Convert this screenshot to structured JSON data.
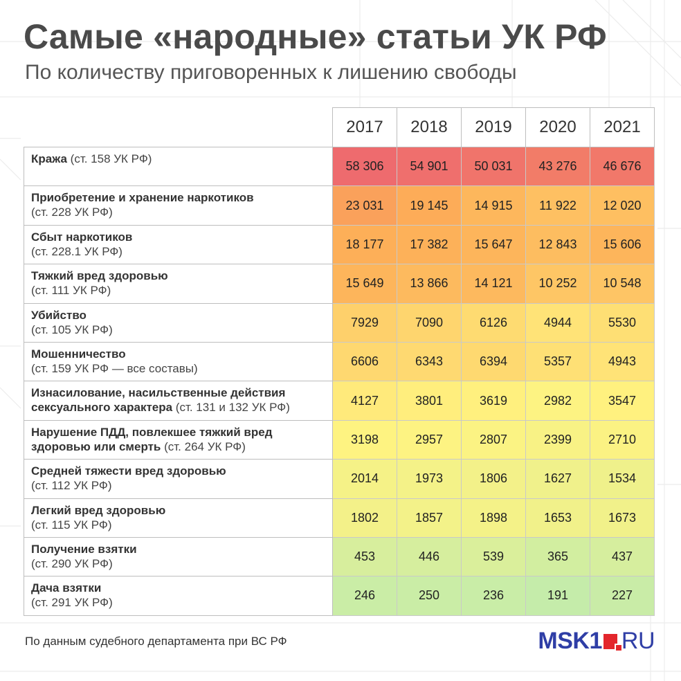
{
  "title": "Самые «народные» статьи УК РФ",
  "subtitle": "По количеству приговоренных к лишению свободы",
  "source": "По данным судебного департамента при ВС РФ",
  "logo": {
    "left": "MSK1",
    "right": "RU",
    "accent": "#e3262c",
    "brand": "#2f3ea6"
  },
  "chart_data": {
    "type": "table",
    "columns": [
      "2017",
      "2018",
      "2019",
      "2020",
      "2021"
    ],
    "rows": [
      {
        "label": "Кража",
        "note": " (ст. 158 УК РФ)",
        "values": [
          58306,
          54901,
          50031,
          43276,
          46676
        ],
        "display": [
          "58 306",
          "54 901",
          "50 031",
          "43 276",
          "46 676"
        ]
      },
      {
        "label": "Приобретение и хранение наркотиков",
        "note": "(ст. 228 УК РФ)",
        "values": [
          23031,
          19145,
          14915,
          11922,
          12020
        ],
        "display": [
          "23 031",
          "19 145",
          "14 915",
          "11 922",
          "12 020"
        ]
      },
      {
        "label": "Сбыт наркотиков",
        "note": "(ст. 228.1 УК РФ)",
        "values": [
          18177,
          17382,
          15647,
          12843,
          15606
        ],
        "display": [
          "18 177",
          "17 382",
          "15 647",
          "12 843",
          "15 606"
        ]
      },
      {
        "label": "Тяжкий вред здоровью",
        "note": "(ст. 111 УК РФ)",
        "values": [
          15649,
          13866,
          14121,
          10252,
          10548
        ],
        "display": [
          "15 649",
          "13 866",
          "14 121",
          "10 252",
          "10 548"
        ]
      },
      {
        "label": "Убийство",
        "note": "(ст. 105 УК РФ)",
        "values": [
          7929,
          7090,
          6126,
          4944,
          5530
        ],
        "display": [
          "7929",
          "7090",
          "6126",
          "4944",
          "5530"
        ]
      },
      {
        "label": "Мошенничество",
        "note": "(ст. 159 УК РФ — все составы)",
        "values": [
          6606,
          6343,
          6394,
          5357,
          4943
        ],
        "display": [
          "6606",
          "6343",
          "6394",
          "5357",
          "4943"
        ]
      },
      {
        "label": "Изнасилование, насильственные действия сексуального характера",
        "note": " (ст. 131 и 132 УК РФ)",
        "values": [
          4127,
          3801,
          3619,
          2982,
          3547
        ],
        "display": [
          "4127",
          "3801",
          "3619",
          "2982",
          "3547"
        ]
      },
      {
        "label": "Нарушение ПДД, повлекшее тяжкий вред здоровью или смерть",
        "note": " (ст. 264 УК РФ)",
        "values": [
          3198,
          2957,
          2807,
          2399,
          2710
        ],
        "display": [
          "3198",
          "2957",
          "2807",
          "2399",
          "2710"
        ]
      },
      {
        "label": "Средней тяжести вред здоровью",
        "note": "(ст. 112 УК РФ)",
        "values": [
          2014,
          1973,
          1806,
          1627,
          1534
        ],
        "display": [
          "2014",
          "1973",
          "1806",
          "1627",
          "1534"
        ]
      },
      {
        "label": "Легкий вред здоровью",
        "note": "(ст. 115 УК РФ)",
        "values": [
          1802,
          1857,
          1898,
          1653,
          1673
        ],
        "display": [
          "1802",
          "1857",
          "1898",
          "1653",
          "1673"
        ]
      },
      {
        "label": "Получение взятки",
        "note": "(ст. 290 УК РФ)",
        "values": [
          453,
          446,
          539,
          365,
          437
        ],
        "display": [
          "453",
          "446",
          "539",
          "365",
          "437"
        ]
      },
      {
        "label": "Дача взятки",
        "note": "(ст. 291 УК РФ)",
        "values": [
          246,
          250,
          236,
          191,
          227
        ],
        "display": [
          "246",
          "250",
          "236",
          "191",
          "227"
        ]
      }
    ],
    "color_scale": {
      "low": "#c5ecaa",
      "mid": "#fff380",
      "high_mid": "#fdae57",
      "high": "#ee6b6e"
    }
  }
}
